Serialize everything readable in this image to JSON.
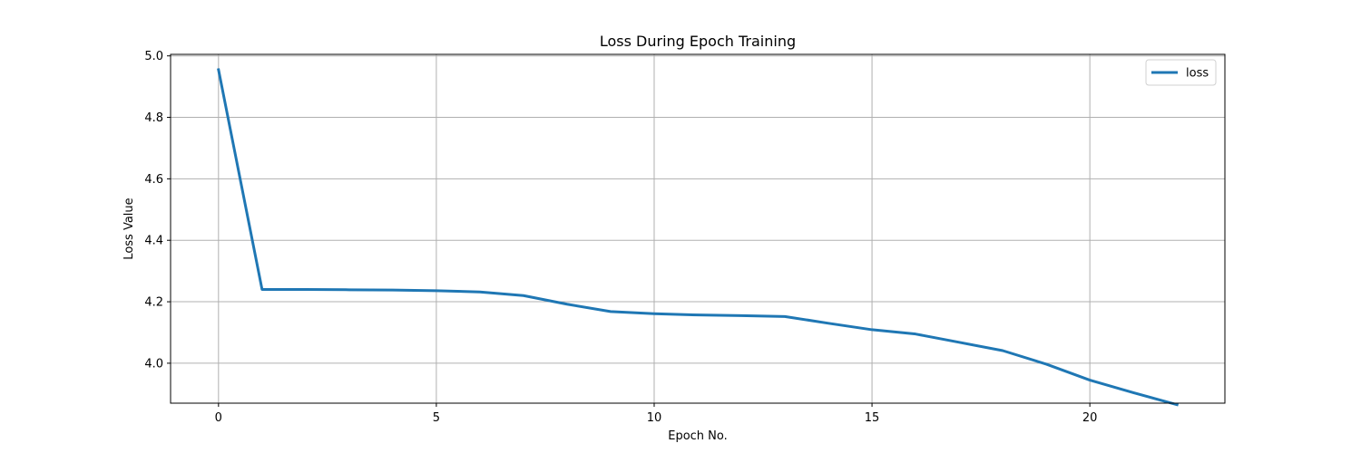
{
  "chart_data": {
    "type": "line",
    "title": "Loss During Epoch Training",
    "xlabel": "Epoch No.",
    "ylabel": "Loss Value",
    "xlim": [
      -1.1,
      23.1
    ],
    "ylim": [
      3.87,
      5.005
    ],
    "xticks": [
      0,
      5,
      10,
      15,
      20
    ],
    "yticks": [
      4.0,
      4.2,
      4.4,
      4.6,
      4.8,
      5.0
    ],
    "grid": true,
    "legend_position": "top-right",
    "series": [
      {
        "name": "loss",
        "color": "#1f77b4",
        "x": [
          0,
          1,
          2,
          3,
          4,
          5,
          6,
          7,
          8,
          9,
          10,
          11,
          12,
          13,
          14,
          15,
          16,
          17,
          18,
          19,
          20,
          21,
          22
        ],
        "y": [
          4.955,
          4.24,
          4.24,
          4.239,
          4.238,
          4.236,
          4.232,
          4.22,
          4.192,
          4.168,
          4.161,
          4.157,
          4.155,
          4.152,
          4.13,
          4.109,
          4.095,
          4.068,
          4.041,
          3.997,
          3.945,
          3.904,
          3.865
        ]
      }
    ]
  }
}
